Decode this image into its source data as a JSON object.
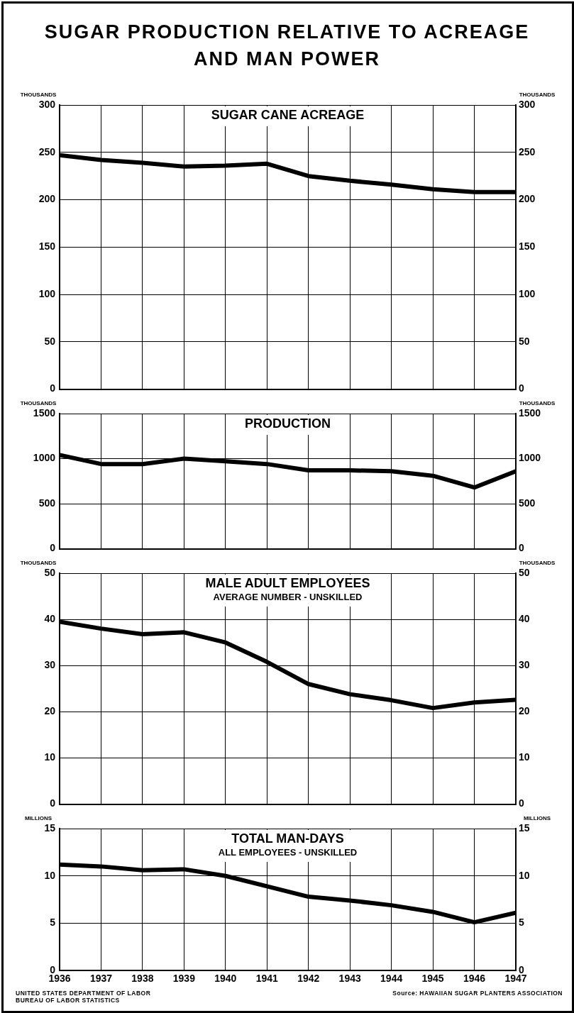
{
  "chart_data": [
    {
      "type": "other",
      "title": "SUGAR PRODUCTION RELATIVE TO ACREAGE AND MAN POWER"
    },
    {
      "type": "line",
      "title": "SUGAR CANE ACREAGE",
      "ylabel": "THOUSANDS",
      "y2label": "THOUSANDS",
      "x": [
        1936,
        1937,
        1938,
        1939,
        1940,
        1941,
        1942,
        1943,
        1944,
        1945,
        1946,
        1947
      ],
      "series": [
        {
          "color": "#000000",
          "values": [
            247,
            242,
            239,
            235,
            236,
            238,
            225,
            220,
            216,
            211,
            208,
            208
          ]
        }
      ],
      "xlim": [
        1936,
        1947
      ],
      "xticks": [
        1936,
        1937,
        1938,
        1939,
        1940,
        1941,
        1942,
        1943,
        1944,
        1945,
        1946,
        1947
      ],
      "ylim": [
        0,
        300
      ],
      "yticks": [
        0,
        50,
        100,
        150,
        200,
        250,
        300
      ],
      "y2lim": [
        0,
        300
      ],
      "y2ticks": [
        0,
        50,
        100,
        150,
        200,
        250,
        300
      ],
      "grid": true,
      "tick_labels": "y"
    },
    {
      "type": "line",
      "title": "PRODUCTION",
      "ylabel": "THOUSANDS",
      "y2label": "THOUSANDS",
      "x": [
        1936,
        1937,
        1938,
        1939,
        1940,
        1941,
        1942,
        1943,
        1944,
        1945,
        1946,
        1947
      ],
      "series": [
        {
          "color": "#000000",
          "values": [
            1040,
            940,
            940,
            1000,
            970,
            940,
            870,
            870,
            860,
            810,
            680,
            860
          ]
        }
      ],
      "xlim": [
        1936,
        1947
      ],
      "xticks": [
        1936,
        1937,
        1938,
        1939,
        1940,
        1941,
        1942,
        1943,
        1944,
        1945,
        1946,
        1947
      ],
      "ylim": [
        0,
        1500
      ],
      "yticks": [
        0,
        500,
        1000,
        1500
      ],
      "y2lim": [
        0,
        1500
      ],
      "y2ticks": [
        0,
        500,
        1000,
        1500
      ],
      "grid": true,
      "tick_labels": "y"
    },
    {
      "type": "line",
      "title": "MALE ADULT EMPLOYEES",
      "subtitle": "AVERAGE NUMBER - UNSKILLED",
      "ylabel": "THOUSANDS",
      "y2label": "THOUSANDS",
      "x": [
        1936,
        1937,
        1938,
        1939,
        1940,
        1941,
        1942,
        1943,
        1944,
        1945,
        1946,
        1947
      ],
      "series": [
        {
          "color": "#000000",
          "values": [
            39.5,
            38,
            36.8,
            37.2,
            35,
            30.8,
            26,
            23.8,
            22.5,
            20.8,
            22,
            22.6
          ]
        }
      ],
      "xlim": [
        1936,
        1947
      ],
      "xticks": [
        1936,
        1937,
        1938,
        1939,
        1940,
        1941,
        1942,
        1943,
        1944,
        1945,
        1946,
        1947
      ],
      "ylim": [
        0,
        50
      ],
      "yticks": [
        0,
        10,
        20,
        30,
        40,
        50
      ],
      "y2lim": [
        0,
        50
      ],
      "y2ticks": [
        0,
        10,
        20,
        30,
        40,
        50
      ],
      "grid": true,
      "tick_labels": "y"
    },
    {
      "type": "line",
      "title": "TOTAL MAN-DAYS",
      "subtitle": "ALL EMPLOYEES - UNSKILLED",
      "ylabel": "MILLIONS",
      "y2label": "MILLIONS",
      "x": [
        1936,
        1937,
        1938,
        1939,
        1940,
        1941,
        1942,
        1943,
        1944,
        1945,
        1946,
        1947
      ],
      "series": [
        {
          "color": "#000000",
          "values": [
            11.2,
            11,
            10.6,
            10.7,
            10,
            8.9,
            7.8,
            7.4,
            6.9,
            6.2,
            5.1,
            6.1
          ]
        }
      ],
      "xlim": [
        1936,
        1947
      ],
      "xticks": [
        1936,
        1937,
        1938,
        1939,
        1940,
        1941,
        1942,
        1943,
        1944,
        1945,
        1946,
        1947
      ],
      "ylim": [
        0,
        15
      ],
      "yticks": [
        0,
        5,
        10,
        15
      ],
      "y2lim": [
        0,
        15
      ],
      "y2ticks": [
        0,
        5,
        10,
        15
      ],
      "grid": true,
      "annotations": [
        "UNITED STATES DEPARTMENT OF LABOR",
        "BUREAU OF LABOR STATISTICS",
        "Source: HAWAIIAN SUGAR PLANTERS ASSOCIATION"
      ]
    }
  ]
}
